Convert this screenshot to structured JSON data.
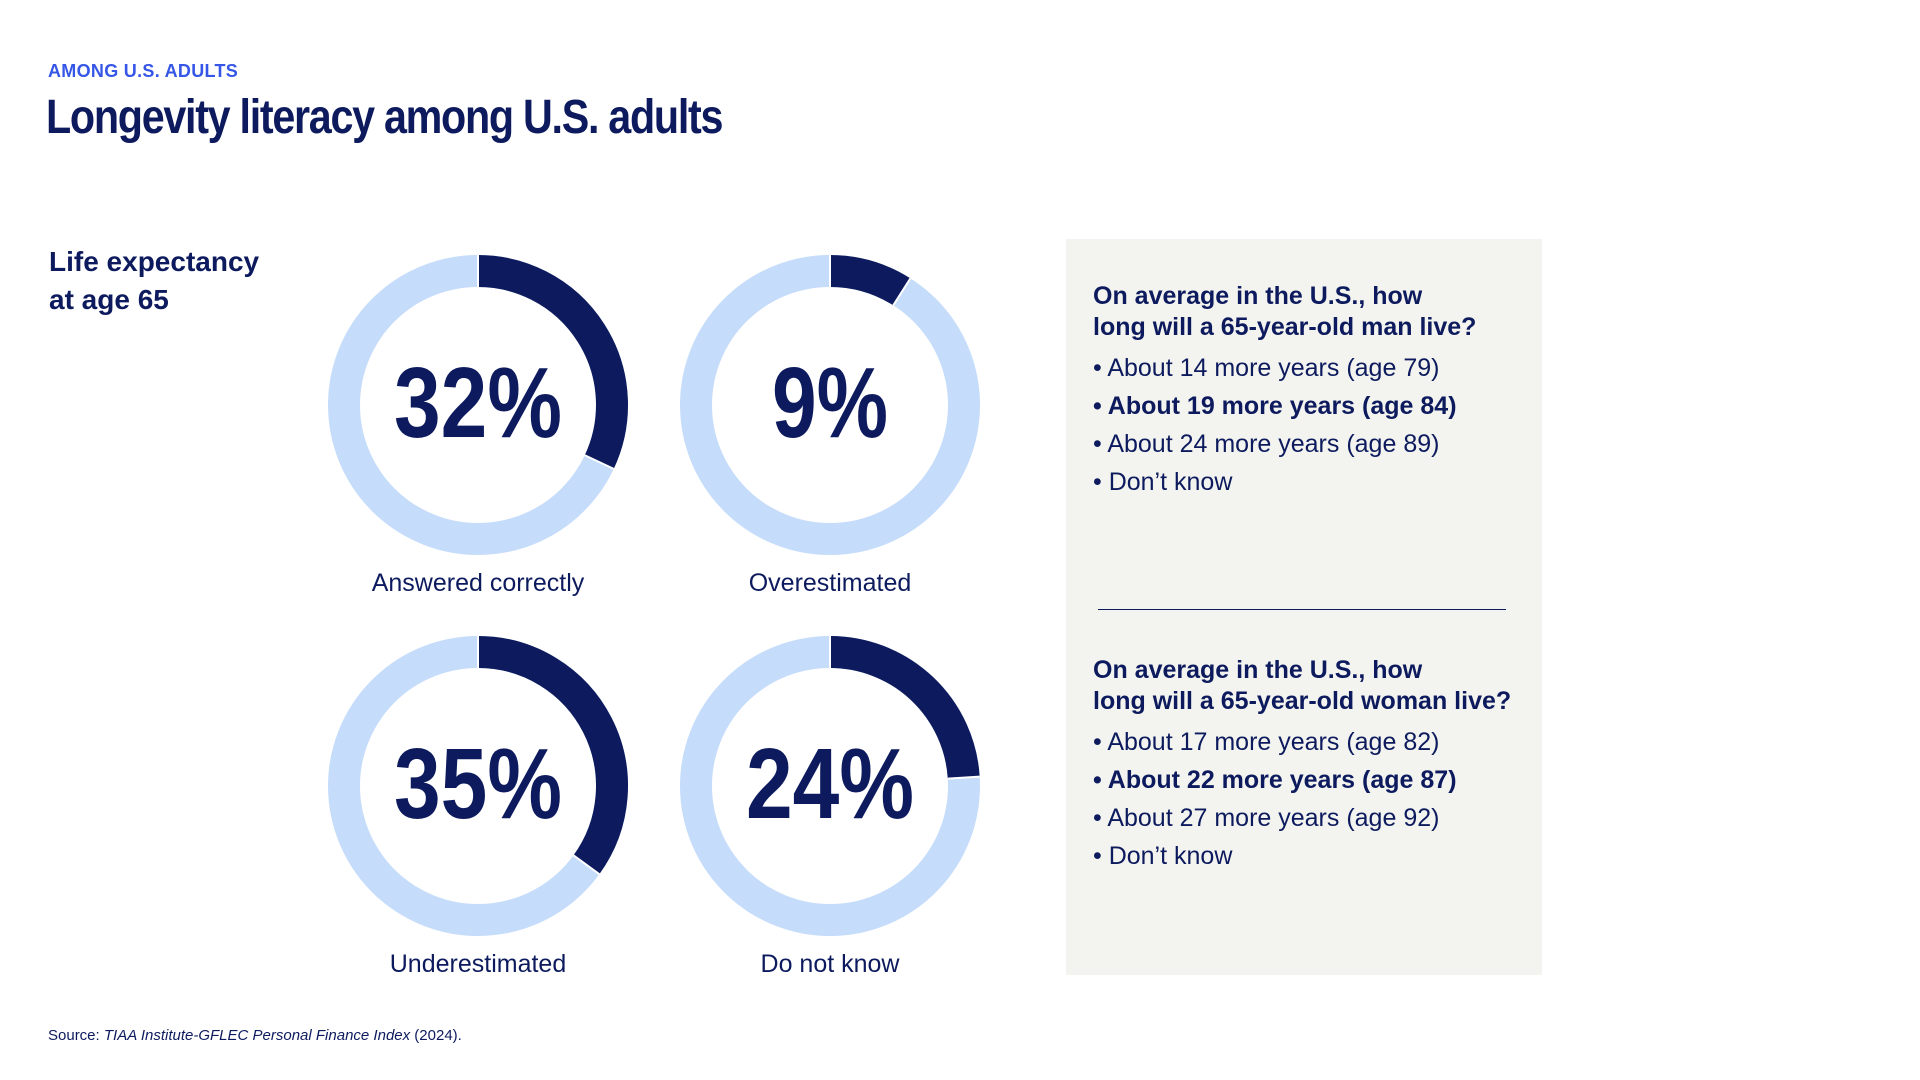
{
  "header": {
    "eyebrow": "AMONG U.S. ADULTS",
    "title": "Longevity literacy among U.S. adults"
  },
  "section_label": {
    "line1": "Life expectancy",
    "line2": "at age 65"
  },
  "colors": {
    "navy": "#0d1b5e",
    "light_blue": "#c6dcfb",
    "accent_blue": "#3556e6",
    "panel_bg": "#f3f4ef"
  },
  "chart_data": {
    "type": "pie",
    "variant": "donut",
    "title": "",
    "categories": [
      "Answered correctly",
      "Overestimated",
      "Underestimated",
      "Do not know"
    ],
    "values": [
      32,
      9,
      35,
      24
    ],
    "value_labels": [
      "32%",
      "9%",
      "35%",
      "24%"
    ],
    "unit": "%"
  },
  "panel": {
    "q1": {
      "line1": "On average in the U.S., how",
      "line2": "long will a 65-year-old man live?",
      "options": [
        {
          "text": "• About 14 more years (age 79)",
          "correct": false
        },
        {
          "text": "• About 19 more years (age 84)",
          "correct": true
        },
        {
          "text": "• About 24 more years (age 89)",
          "correct": false
        },
        {
          "text": "• Don’t know",
          "correct": false
        }
      ]
    },
    "q2": {
      "line1": "On average in the U.S., how",
      "line2": "long will a 65-year-old woman live?",
      "options": [
        {
          "text": "• About 17 more years (age 82)",
          "correct": false
        },
        {
          "text": "• About 22 more years (age 87)",
          "correct": true
        },
        {
          "text": "• About 27 more years (age 92)",
          "correct": false
        },
        {
          "text": "• Don’t know",
          "correct": false
        }
      ]
    }
  },
  "source": {
    "prefix": "Source: ",
    "title": "TIAA Institute-GFLEC Personal Finance Index",
    "suffix": " (2024)."
  }
}
